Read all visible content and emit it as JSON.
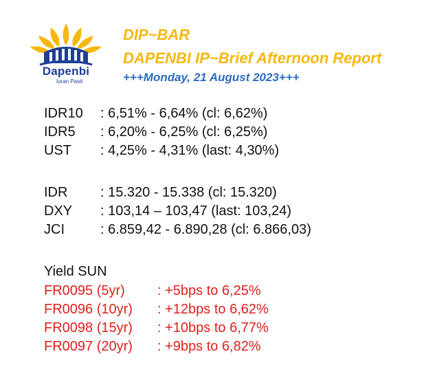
{
  "logo": {
    "name": "Dapenbi",
    "tagline": "Iuran Pasti",
    "primary_color": "#1e3f95",
    "accent_color": "#f6b80f"
  },
  "header": {
    "brand": "DIP~BAR",
    "title": "DAPENBI IP~Brief Afternoon Report",
    "date": "+++Monday, 21 August 2023+++"
  },
  "rates": [
    {
      "label": "IDR10",
      "value": ": 6,51% - 6,64% (cl: 6,62%)"
    },
    {
      "label": "IDR5",
      "value": ": 6,20% - 6,25% (cl: 6,25%)"
    },
    {
      "label": "UST",
      "value": ": 4,25% - 4,31% (last: 4,30%)"
    }
  ],
  "markets": [
    {
      "label": "IDR",
      "value": ": 15.320 - 15.338 (cl: 15.320)"
    },
    {
      "label": "DXY",
      "value": ": 103,14 – 103,47 (last: 103,24)"
    },
    {
      "label": "JCI",
      "value": ": 6.859,42 - 6.890,28 (cl: 6.866,03)"
    }
  ],
  "sun": {
    "title": "Yield SUN",
    "color": "#e0201b",
    "items": [
      {
        "label": "FR0095 (5yr)",
        "value": ": +5bps to 6,25%"
      },
      {
        "label": "FR0096 (10yr)",
        "value": ": +12bps to 6,62%"
      },
      {
        "label": "FR0098 (15yr)",
        "value": ": +10bps to 6,77%"
      },
      {
        "label": "FR0097 (20yr)",
        "value": ": +9bps to 6,82%"
      }
    ]
  }
}
